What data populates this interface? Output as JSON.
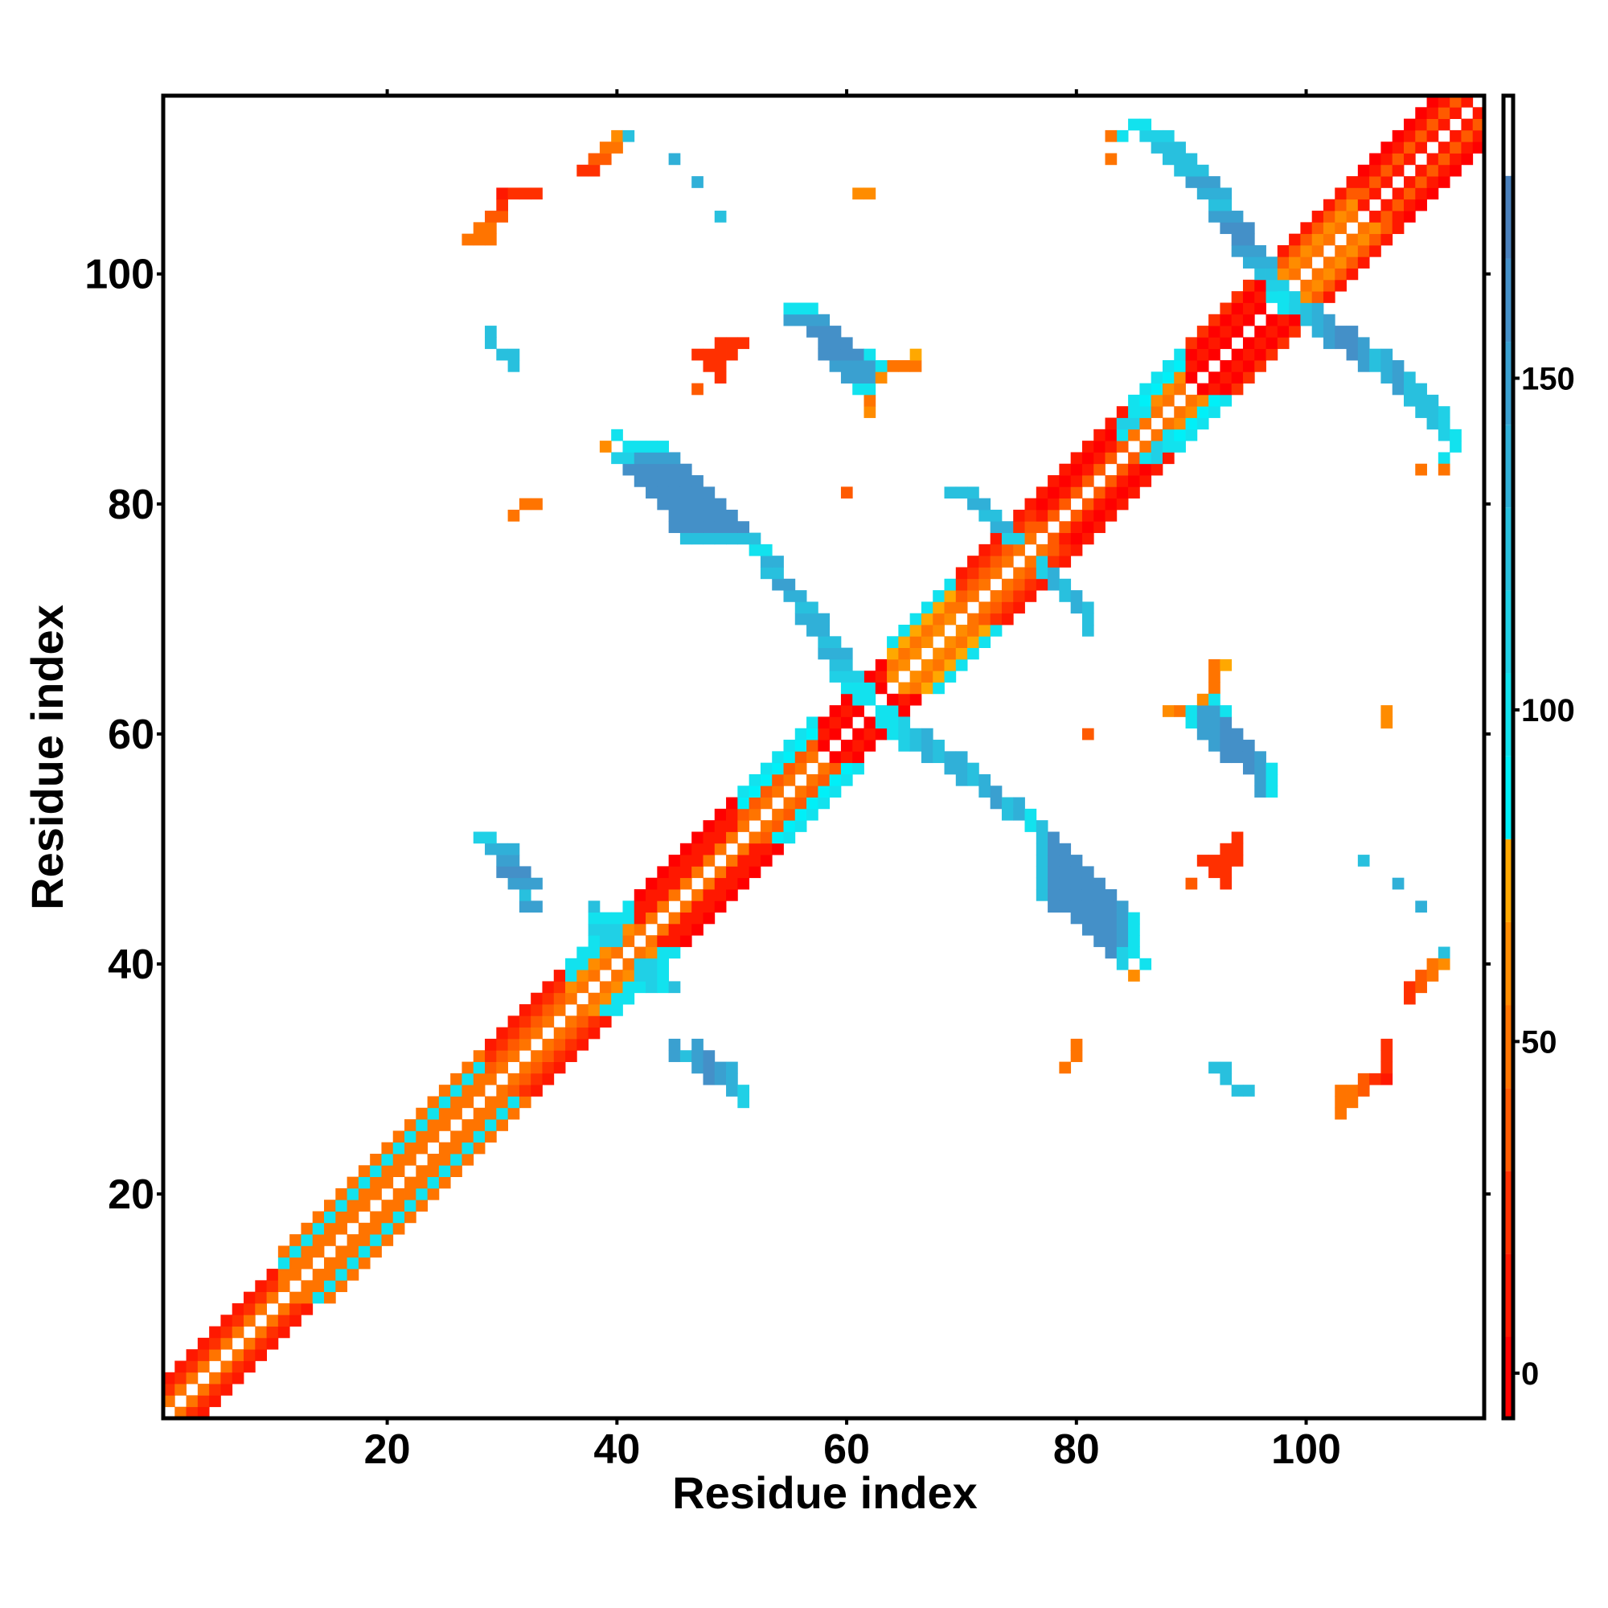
{
  "chart_data": {
    "type": "heatmap",
    "title": "",
    "xlabel": "Residue index",
    "ylabel": "Residue index",
    "n_residues": 115,
    "xlim": [
      0.5,
      115.5
    ],
    "ylim": [
      0.5,
      115.5
    ],
    "x_ticks": [
      20,
      40,
      60,
      80,
      100
    ],
    "y_ticks": [
      20,
      40,
      60,
      80,
      100
    ],
    "symmetric": true,
    "colorbar": {
      "range": [
        -6.8,
        192.6
      ],
      "colored_max": 180.5,
      "ticks": [
        0,
        50,
        100,
        150
      ],
      "bins": [
        {
          "max": 5.5,
          "color": "#ff0000"
        },
        {
          "max": 18,
          "color": "#ff1800"
        },
        {
          "max": 30.5,
          "color": "#ff3000"
        },
        {
          "max": 43,
          "color": "#ff5a00"
        },
        {
          "max": 55.5,
          "color": "#ff7400"
        },
        {
          "max": 68,
          "color": "#ff8c00"
        },
        {
          "max": 80.5,
          "color": "#ffa800"
        },
        {
          "max": 93,
          "color": "#00f0f8"
        },
        {
          "max": 105.5,
          "color": "#12e2ee"
        },
        {
          "max": 118,
          "color": "#20d0e6"
        },
        {
          "max": 130.5,
          "color": "#28c0de"
        },
        {
          "max": 143,
          "color": "#30b0d8"
        },
        {
          "max": 155.5,
          "color": "#3aa0d0"
        },
        {
          "max": 168,
          "color": "#4490c8"
        },
        {
          "max": 180.5,
          "color": "#4a80bc"
        }
      ]
    },
    "diagonal_segments": [
      {
        "residues": [
          1,
          10
        ],
        "offset_values": [
          50,
          25,
          10,
          0
        ]
      },
      {
        "residues": [
          11,
          28
        ],
        "offset_values": [
          50,
          50,
          95,
          50
        ]
      },
      {
        "residues": [
          29,
          35
        ],
        "offset_values": [
          50,
          37,
          25,
          10
        ]
      },
      {
        "residues": [
          36,
          41
        ],
        "offset_values": [
          50,
          62,
          95,
          100
        ]
      },
      {
        "residues": [
          42,
          50
        ],
        "offset_values": [
          50,
          10,
          10,
          5
        ]
      },
      {
        "residues": [
          51,
          57
        ],
        "offset_values": [
          50,
          37,
          90,
          95
        ]
      },
      {
        "residues": [
          58,
          63
        ],
        "offset_values": [
          5,
          10,
          5,
          0
        ]
      },
      {
        "residues": [
          64,
          69
        ],
        "offset_values": [
          62,
          50,
          75,
          100
        ]
      },
      {
        "residues": [
          70,
          76
        ],
        "offset_values": [
          50,
          37,
          25,
          10
        ]
      },
      {
        "residues": [
          77,
          84
        ],
        "offset_values": [
          37,
          10,
          5,
          10
        ]
      },
      {
        "residues": [
          85,
          89
        ],
        "offset_values": [
          50,
          62,
          90,
          95
        ]
      },
      {
        "residues": [
          90,
          97
        ],
        "offset_values": [
          5,
          10,
          5,
          25
        ]
      },
      {
        "residues": [
          98,
          104
        ],
        "offset_values": [
          50,
          62,
          37,
          10
        ]
      },
      {
        "residues": [
          105,
          114
        ],
        "offset_values": [
          10,
          37,
          10,
          5
        ]
      }
    ],
    "column_segments_x_y0_y1_value": [
      [
        63,
        61,
        62,
        100
      ],
      [
        64,
        60,
        62,
        100
      ],
      [
        65,
        59,
        61,
        110
      ],
      [
        66,
        59,
        60,
        120
      ],
      [
        67,
        58,
        60,
        140
      ],
      [
        68,
        58,
        59,
        130
      ],
      [
        69,
        57,
        58,
        140
      ],
      [
        70,
        56,
        58,
        140
      ],
      [
        71,
        56,
        57,
        130
      ],
      [
        72,
        55,
        56,
        140
      ],
      [
        73,
        54,
        55,
        150
      ],
      [
        74,
        53,
        54,
        130
      ],
      [
        75,
        53,
        54,
        140
      ],
      [
        76,
        52,
        53,
        100
      ],
      [
        77,
        46,
        52,
        130
      ],
      [
        78,
        45,
        51,
        160
      ],
      [
        79,
        45,
        50,
        160
      ],
      [
        80,
        44,
        49,
        160
      ],
      [
        81,
        43,
        48,
        160
      ],
      [
        82,
        42,
        47,
        160
      ],
      [
        83,
        41,
        46,
        160
      ],
      [
        84,
        40,
        45,
        150
      ],
      [
        85,
        41,
        44,
        100
      ],
      [
        84,
        40,
        41,
        110
      ],
      [
        86,
        40,
        40,
        100
      ],
      [
        85,
        39,
        39,
        62
      ],
      [
        88,
        62,
        62,
        62
      ],
      [
        89,
        62,
        62,
        50
      ],
      [
        90,
        61,
        62,
        100
      ],
      [
        91,
        60,
        62,
        150
      ],
      [
        92,
        59,
        62,
        150
      ],
      [
        93,
        58,
        61,
        160
      ],
      [
        94,
        58,
        60,
        160
      ],
      [
        95,
        57,
        59,
        160
      ],
      [
        96,
        55,
        58,
        150
      ],
      [
        97,
        55,
        57,
        95
      ],
      [
        92,
        64,
        66,
        50
      ],
      [
        91,
        63,
        63,
        62
      ],
      [
        93,
        66,
        66,
        75
      ],
      [
        92,
        63,
        63,
        100
      ],
      [
        93,
        62,
        62,
        100
      ],
      [
        92,
        48,
        49,
        20
      ],
      [
        93,
        47,
        50,
        25
      ],
      [
        91,
        49,
        49,
        25
      ],
      [
        94,
        49,
        51,
        25
      ],
      [
        90,
        47,
        47,
        40
      ],
      [
        45,
        32,
        33,
        150
      ],
      [
        46,
        32,
        32,
        130
      ],
      [
        47,
        31,
        33,
        150
      ],
      [
        48,
        30,
        32,
        160
      ],
      [
        49,
        30,
        31,
        150
      ],
      [
        50,
        29,
        31,
        140
      ],
      [
        51,
        28,
        29,
        110
      ],
      [
        92,
        31,
        31,
        120
      ],
      [
        93,
        30,
        31,
        130
      ],
      [
        94,
        29,
        29,
        120
      ],
      [
        95,
        29,
        29,
        120
      ],
      [
        103,
        27,
        29,
        45
      ],
      [
        104,
        28,
        29,
        50
      ],
      [
        105,
        29,
        30,
        37
      ],
      [
        106,
        30,
        30,
        20
      ],
      [
        107,
        30,
        30,
        15
      ],
      [
        107,
        31,
        33,
        20
      ],
      [
        109,
        37,
        38,
        20
      ],
      [
        110,
        38,
        39,
        37
      ],
      [
        111,
        39,
        40,
        45
      ],
      [
        112,
        40,
        40,
        62
      ],
      [
        112,
        41,
        41,
        120
      ],
      [
        80,
        32,
        33,
        50
      ],
      [
        79,
        31,
        31,
        50
      ],
      [
        105,
        49,
        49,
        120
      ],
      [
        108,
        47,
        47,
        140
      ],
      [
        110,
        45,
        45,
        140
      ],
      [
        107,
        61,
        62,
        62
      ],
      [
        81,
        60,
        60,
        37
      ],
      [
        98,
        97,
        98,
        100
      ],
      [
        99,
        97,
        98,
        110
      ],
      [
        100,
        96,
        97,
        120
      ],
      [
        101,
        95,
        97,
        140
      ],
      [
        102,
        94,
        96,
        150
      ],
      [
        103,
        94,
        95,
        160
      ],
      [
        104,
        93,
        95,
        160
      ],
      [
        105,
        92,
        94,
        150
      ],
      [
        106,
        92,
        93,
        130
      ],
      [
        107,
        91,
        93,
        140
      ],
      [
        108,
        90,
        92,
        150
      ],
      [
        109,
        89,
        91,
        130
      ],
      [
        110,
        88,
        90,
        120
      ],
      [
        111,
        87,
        89,
        120
      ],
      [
        112,
        86,
        88,
        110
      ],
      [
        113,
        85,
        86,
        100
      ],
      [
        112,
        84,
        84,
        100
      ],
      [
        112,
        83,
        83,
        50
      ],
      [
        110,
        83,
        83,
        50
      ],
      [
        77,
        74,
        75,
        110
      ],
      [
        78,
        73,
        74,
        140
      ],
      [
        79,
        72,
        73,
        130
      ],
      [
        80,
        71,
        72,
        140
      ],
      [
        81,
        69,
        71,
        120
      ],
      [
        88,
        85,
        86,
        100
      ],
      [
        89,
        85,
        85,
        95
      ],
      [
        87,
        84,
        85,
        110
      ],
      [
        86,
        84,
        84,
        100
      ],
      [
        42,
        39,
        40,
        110
      ],
      [
        43,
        38,
        40,
        110
      ],
      [
        44,
        38,
        39,
        100
      ],
      [
        45,
        38,
        38,
        130
      ]
    ]
  }
}
